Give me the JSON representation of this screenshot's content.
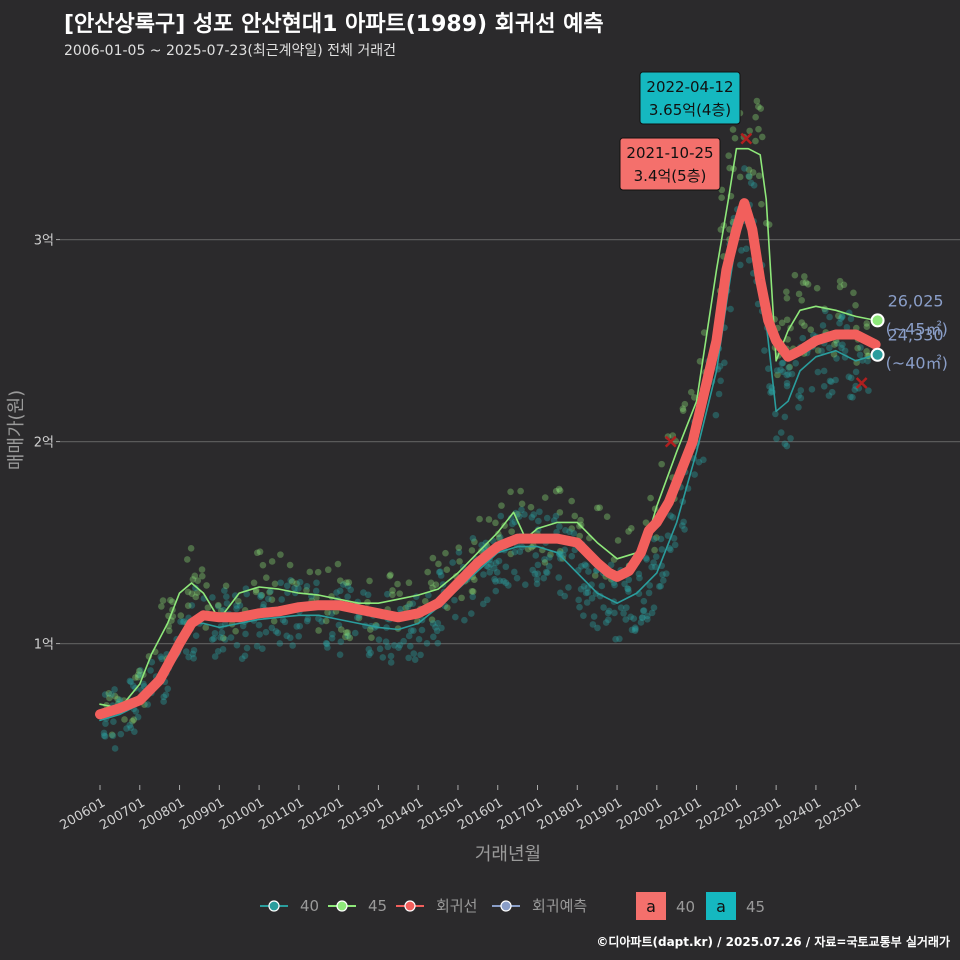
{
  "header": {
    "title": "[안산상록구] 성포 안산현대1 아파트(1989) 회귀선 예측",
    "subtitle": "2006-01-05 ~ 2025-07-23(최근계약일) 전체 거래건"
  },
  "caption": "©디아파트(dapt.kr) / 2025.07.26 / 자료=국토교통부 실거래가",
  "legend": {
    "items": [
      {
        "label": "40",
        "kind": "dot",
        "color": "#2a9d9d"
      },
      {
        "label": "45",
        "kind": "dot",
        "color": "#8ee87a"
      },
      {
        "label": "회귀선",
        "kind": "dot",
        "color": "#f25f5c"
      },
      {
        "label": "회귀예측",
        "kind": "dot",
        "color": "#8a9ec8"
      }
    ],
    "boxes": [
      {
        "glyph": "a",
        "label": "40",
        "color": "#f4706c"
      },
      {
        "glyph": "a",
        "label": "45",
        "color": "#15b8c0"
      }
    ]
  },
  "colors": {
    "s40": "#2a9d9d",
    "s45": "#8ee87a",
    "regression": "#f25f5c",
    "prediction": "#8a9ec8",
    "grid": "#5a5a5a",
    "marker": "#b01f1f"
  },
  "chart_data": {
    "type": "line",
    "xlabel": "거래년월",
    "ylabel": "매매가(원)",
    "xlim": [
      2006.0,
      2025.75
    ],
    "ylim": [
      0.3,
      3.8
    ],
    "y_unit": "억",
    "y_ticks": [
      {
        "value": 1,
        "label": "1억"
      },
      {
        "value": 2,
        "label": "2억"
      },
      {
        "value": 3,
        "label": "3억"
      }
    ],
    "x_ticks": [
      {
        "value": 2006,
        "label": "200601"
      },
      {
        "value": 2007,
        "label": "200701"
      },
      {
        "value": 2008,
        "label": "200801"
      },
      {
        "value": 2009,
        "label": "200901"
      },
      {
        "value": 2010,
        "label": "201001"
      },
      {
        "value": 2011,
        "label": "201101"
      },
      {
        "value": 2012,
        "label": "201201"
      },
      {
        "value": 2013,
        "label": "201301"
      },
      {
        "value": 2014,
        "label": "201401"
      },
      {
        "value": 2015,
        "label": "201501"
      },
      {
        "value": 2016,
        "label": "201601"
      },
      {
        "value": 2017,
        "label": "201701"
      },
      {
        "value": 2018,
        "label": "201801"
      },
      {
        "value": 2019,
        "label": "201901"
      },
      {
        "value": 2020,
        "label": "202001"
      },
      {
        "value": 2021,
        "label": "202101"
      },
      {
        "value": 2022,
        "label": "202201"
      },
      {
        "value": 2023,
        "label": "202301"
      },
      {
        "value": 2024,
        "label": "202401"
      },
      {
        "value": 2025,
        "label": "202501"
      }
    ],
    "series": [
      {
        "name": "회귀선",
        "color": "#f25f5c",
        "points": [
          [
            2006.0,
            0.65
          ],
          [
            2006.5,
            0.68
          ],
          [
            2007.0,
            0.72
          ],
          [
            2007.5,
            0.82
          ],
          [
            2008.0,
            1.0
          ],
          [
            2008.3,
            1.1
          ],
          [
            2008.6,
            1.14
          ],
          [
            2009.0,
            1.13
          ],
          [
            2009.5,
            1.13
          ],
          [
            2010.0,
            1.15
          ],
          [
            2010.5,
            1.16
          ],
          [
            2011.0,
            1.18
          ],
          [
            2011.5,
            1.19
          ],
          [
            2012.0,
            1.19
          ],
          [
            2012.5,
            1.17
          ],
          [
            2013.0,
            1.15
          ],
          [
            2013.5,
            1.13
          ],
          [
            2014.0,
            1.15
          ],
          [
            2014.5,
            1.2
          ],
          [
            2015.0,
            1.3
          ],
          [
            2015.5,
            1.4
          ],
          [
            2016.0,
            1.48
          ],
          [
            2016.5,
            1.52
          ],
          [
            2017.0,
            1.52
          ],
          [
            2017.5,
            1.52
          ],
          [
            2018.0,
            1.5
          ],
          [
            2018.5,
            1.4
          ],
          [
            2018.8,
            1.35
          ],
          [
            2019.0,
            1.33
          ],
          [
            2019.3,
            1.36
          ],
          [
            2019.6,
            1.45
          ],
          [
            2019.8,
            1.56
          ],
          [
            2020.0,
            1.6
          ],
          [
            2020.3,
            1.7
          ],
          [
            2020.6,
            1.85
          ],
          [
            2020.9,
            2.0
          ],
          [
            2021.2,
            2.25
          ],
          [
            2021.5,
            2.5
          ],
          [
            2021.75,
            2.85
          ],
          [
            2022.0,
            3.05
          ],
          [
            2022.2,
            3.18
          ],
          [
            2022.4,
            3.05
          ],
          [
            2022.6,
            2.8
          ],
          [
            2022.8,
            2.6
          ],
          [
            2023.0,
            2.5
          ],
          [
            2023.3,
            2.42
          ],
          [
            2023.6,
            2.45
          ],
          [
            2024.0,
            2.5
          ],
          [
            2024.5,
            2.53
          ],
          [
            2025.0,
            2.53
          ],
          [
            2025.5,
            2.48
          ]
        ]
      },
      {
        "name": "45",
        "color": "#8ee87a",
        "points": [
          [
            2006.0,
            0.7
          ],
          [
            2006.5,
            0.68
          ],
          [
            2007.0,
            0.8
          ],
          [
            2007.3,
            0.95
          ],
          [
            2007.7,
            1.1
          ],
          [
            2008.0,
            1.25
          ],
          [
            2008.3,
            1.3
          ],
          [
            2008.6,
            1.25
          ],
          [
            2009.0,
            1.12
          ],
          [
            2009.5,
            1.25
          ],
          [
            2010.0,
            1.28
          ],
          [
            2010.5,
            1.27
          ],
          [
            2011.0,
            1.25
          ],
          [
            2011.5,
            1.24
          ],
          [
            2012.0,
            1.22
          ],
          [
            2012.5,
            1.2
          ],
          [
            2013.0,
            1.2
          ],
          [
            2013.5,
            1.22
          ],
          [
            2014.0,
            1.24
          ],
          [
            2014.5,
            1.27
          ],
          [
            2015.0,
            1.35
          ],
          [
            2015.5,
            1.45
          ],
          [
            2016.0,
            1.55
          ],
          [
            2016.4,
            1.65
          ],
          [
            2016.7,
            1.52
          ],
          [
            2017.0,
            1.57
          ],
          [
            2017.5,
            1.6
          ],
          [
            2018.0,
            1.6
          ],
          [
            2018.5,
            1.5
          ],
          [
            2019.0,
            1.42
          ],
          [
            2019.5,
            1.45
          ],
          [
            2019.8,
            1.55
          ],
          [
            2020.0,
            1.68
          ],
          [
            2020.5,
            1.95
          ],
          [
            2021.0,
            2.2
          ],
          [
            2021.5,
            2.85
          ],
          [
            2021.8,
            3.2
          ],
          [
            2022.0,
            3.45
          ],
          [
            2022.3,
            3.45
          ],
          [
            2022.6,
            3.42
          ],
          [
            2022.75,
            3.2
          ],
          [
            2023.0,
            2.4
          ],
          [
            2023.3,
            2.55
          ],
          [
            2023.6,
            2.65
          ],
          [
            2024.0,
            2.67
          ],
          [
            2024.5,
            2.65
          ],
          [
            2025.0,
            2.62
          ],
          [
            2025.5,
            2.6
          ]
        ]
      },
      {
        "name": "40",
        "color": "#2a9d9d",
        "points": [
          [
            2006.0,
            0.62
          ],
          [
            2006.5,
            0.65
          ],
          [
            2007.0,
            0.7
          ],
          [
            2007.5,
            0.8
          ],
          [
            2008.0,
            0.95
          ],
          [
            2008.3,
            1.1
          ],
          [
            2008.6,
            1.1
          ],
          [
            2009.0,
            1.08
          ],
          [
            2009.5,
            1.1
          ],
          [
            2010.0,
            1.12
          ],
          [
            2010.5,
            1.13
          ],
          [
            2011.0,
            1.14
          ],
          [
            2011.5,
            1.14
          ],
          [
            2012.0,
            1.12
          ],
          [
            2012.5,
            1.1
          ],
          [
            2013.0,
            1.08
          ],
          [
            2013.5,
            1.07
          ],
          [
            2014.0,
            1.1
          ],
          [
            2014.5,
            1.18
          ],
          [
            2015.0,
            1.27
          ],
          [
            2015.5,
            1.36
          ],
          [
            2016.0,
            1.45
          ],
          [
            2016.5,
            1.48
          ],
          [
            2017.0,
            1.48
          ],
          [
            2017.5,
            1.45
          ],
          [
            2018.0,
            1.35
          ],
          [
            2018.5,
            1.25
          ],
          [
            2019.0,
            1.2
          ],
          [
            2019.5,
            1.25
          ],
          [
            2020.0,
            1.35
          ],
          [
            2020.5,
            1.6
          ],
          [
            2021.0,
            1.95
          ],
          [
            2021.5,
            2.35
          ],
          [
            2021.8,
            2.75
          ],
          [
            2022.0,
            3.0
          ],
          [
            2022.2,
            3.15
          ],
          [
            2022.5,
            3.0
          ],
          [
            2022.8,
            2.5
          ],
          [
            2023.0,
            2.15
          ],
          [
            2023.3,
            2.2
          ],
          [
            2023.6,
            2.35
          ],
          [
            2024.0,
            2.42
          ],
          [
            2024.5,
            2.45
          ],
          [
            2025.0,
            2.4
          ],
          [
            2025.5,
            2.43
          ]
        ]
      }
    ],
    "end_labels": [
      {
        "value": "26,025",
        "area": "(~45㎡)",
        "x": 2025.55,
        "y": 2.6,
        "color": "#8ee87a"
      },
      {
        "value": "24,330",
        "area": "(~40㎡)",
        "x": 2025.55,
        "y": 2.43,
        "color": "#2a9d9d"
      }
    ],
    "annotations": [
      {
        "date": "2022-04-12",
        "price": "3.65억(4층)",
        "x": 2022.28,
        "y": 3.65,
        "box_color": "#15b8c0"
      },
      {
        "date": "2021-10-25",
        "price": "3.4억(5층)",
        "x": 2021.82,
        "y": 3.4,
        "box_color": "#f4706c"
      }
    ],
    "x_markers": [
      [
        2020.35,
        2.0
      ],
      [
        2025.15,
        2.29
      ],
      [
        2022.25,
        3.5
      ]
    ]
  }
}
